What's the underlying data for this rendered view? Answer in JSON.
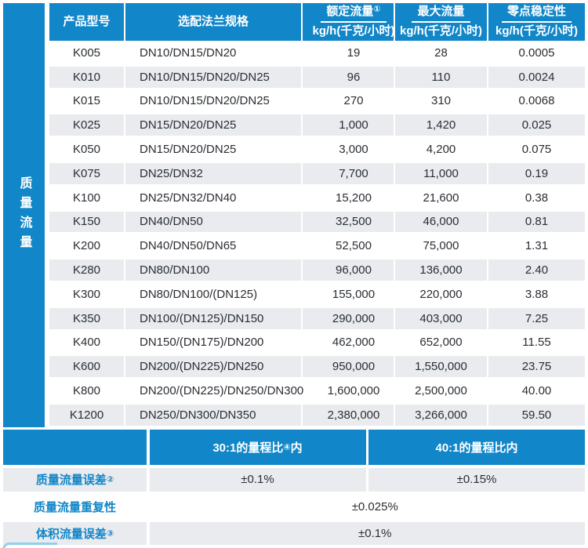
{
  "left_band": {
    "label": "质量流量"
  },
  "table": {
    "headers": {
      "model": "产品型号",
      "flange": "选配法兰规格",
      "rated_line1": "额定流量",
      "rated_sup": "①",
      "rated_unit": "kg/h(千克/小时)",
      "max_line1": "最大流量",
      "max_unit": "kg/h(千克/小时)",
      "zero_line1": "零点稳定性",
      "zero_unit": "kg/h(千克/小时)"
    },
    "rows": [
      {
        "model": "K005",
        "flange": "DN10/DN15/DN20",
        "rated": "19",
        "max": "28",
        "zero": "0.0005"
      },
      {
        "model": "K010",
        "flange": "DN10/DN15/DN20/DN25",
        "rated": "96",
        "max": "110",
        "zero": "0.0024"
      },
      {
        "model": "K015",
        "flange": "DN10/DN15/DN20/DN25",
        "rated": "270",
        "max": "310",
        "zero": "0.0068"
      },
      {
        "model": "K025",
        "flange": "DN15/DN20/DN25",
        "rated": "1,000",
        "max": "1,420",
        "zero": "0.025"
      },
      {
        "model": "K050",
        "flange": "DN15/DN20/DN25",
        "rated": "3,000",
        "max": "4,200",
        "zero": "0.075"
      },
      {
        "model": "K075",
        "flange": "DN25/DN32",
        "rated": "7,700",
        "max": "11,000",
        "zero": "0.19"
      },
      {
        "model": "K100",
        "flange": "DN25/DN32/DN40",
        "rated": "15,200",
        "max": "21,600",
        "zero": "0.38"
      },
      {
        "model": "K150",
        "flange": "DN40/DN50",
        "rated": "32,500",
        "max": "46,000",
        "zero": "0.81"
      },
      {
        "model": "K200",
        "flange": "DN40/DN50/DN65",
        "rated": "52,500",
        "max": "75,000",
        "zero": "1.31"
      },
      {
        "model": "K280",
        "flange": "DN80/DN100",
        "rated": "96,000",
        "max": "136,000",
        "zero": "2.40"
      },
      {
        "model": "K300",
        "flange": "DN80/DN100/(DN125)",
        "rated": "155,000",
        "max": "220,000",
        "zero": "3.88"
      },
      {
        "model": "K350",
        "flange": "DN100/(DN125)/DN150",
        "rated": "290,000",
        "max": "403,000",
        "zero": "7.25"
      },
      {
        "model": "K400",
        "flange": "DN150/(DN175)/DN200",
        "rated": "462,000",
        "max": "652,000",
        "zero": "11.55"
      },
      {
        "model": "K600",
        "flange": "DN200/(DN225)/DN250",
        "rated": "950,000",
        "max": "1,550,000",
        "zero": "23.75"
      },
      {
        "model": "K800",
        "flange": "DN200/(DN225)/DN250/DN300",
        "rated": "1,600,000",
        "max": "2,500,000",
        "zero": "40.00"
      },
      {
        "model": "K1200",
        "flange": "DN250/DN300/DN350",
        "rated": "2,380,000",
        "max": "3,266,000",
        "zero": "59.50"
      }
    ]
  },
  "accuracy": {
    "range30_text": "30:1的量程比",
    "range30_sup": "④",
    "range30_suffix": "内",
    "range40_text": "40:1的量程比内",
    "mass_error": {
      "label": "质量流量误差",
      "sup": "②",
      "v30": "±0.1%",
      "v40": "±0.15%"
    },
    "repeatability": {
      "label": "质量流量重复性",
      "value": "±0.025%"
    },
    "volume_error": {
      "label": "体积流量误差",
      "sup": "③",
      "value": "±0.1%"
    }
  },
  "colors": {
    "primary_blue": "#1186c8",
    "row_gray": "#e9ebee",
    "accent_light_blue": "#8ed1ef"
  }
}
